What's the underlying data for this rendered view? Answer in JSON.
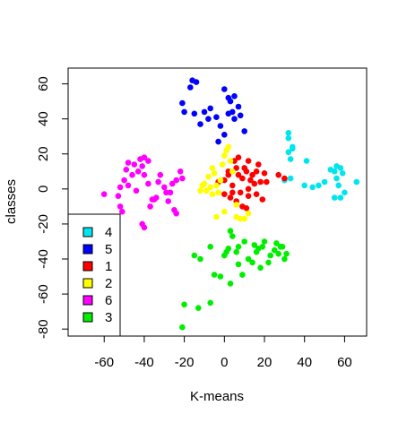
{
  "chart_data": {
    "type": "scatter",
    "title": "",
    "xlabel": "K-means",
    "ylabel": "classes",
    "xlim": [
      -78,
      71
    ],
    "ylim": [
      -84,
      69
    ],
    "xticks": [
      -60,
      -40,
      -20,
      0,
      20,
      40,
      60
    ],
    "yticks": [
      -80,
      -60,
      -40,
      -20,
      0,
      20,
      40,
      60
    ],
    "xtick_labels": [
      "-60",
      "-40",
      "-20",
      "0",
      "20",
      "40",
      "60"
    ],
    "ytick_labels": [
      "-80",
      "-60",
      "-40",
      "-20",
      "0",
      "20",
      "40",
      "60"
    ],
    "grid": false,
    "legend_position": "bottom-left",
    "series": [
      {
        "name": "4",
        "color": "#00E5EE",
        "points": [
          [
            32,
            32
          ],
          [
            32,
            29
          ],
          [
            34,
            23
          ],
          [
            32,
            21
          ],
          [
            34,
            24
          ],
          [
            41,
            16
          ],
          [
            30,
            5
          ],
          [
            33,
            6
          ],
          [
            40,
            2
          ],
          [
            44,
            1
          ],
          [
            47,
            2
          ],
          [
            50,
            4
          ],
          [
            53,
            11
          ],
          [
            55,
            10
          ],
          [
            56,
            13
          ],
          [
            58,
            12
          ],
          [
            59,
            9
          ],
          [
            56,
            6
          ],
          [
            57,
            2
          ],
          [
            55,
            -5
          ],
          [
            58,
            -5
          ],
          [
            60,
            -2
          ],
          [
            66,
            4
          ],
          [
            33,
            17
          ]
        ]
      },
      {
        "name": "5",
        "color": "#0000FF",
        "points": [
          [
            -16,
            62
          ],
          [
            -14,
            61
          ],
          [
            -17,
            58
          ],
          [
            -21,
            49
          ],
          [
            -20,
            44
          ],
          [
            -15,
            43
          ],
          [
            -12,
            37
          ],
          [
            -10,
            44
          ],
          [
            -8,
            40
          ],
          [
            -7,
            46
          ],
          [
            -2,
            36
          ],
          [
            -4,
            41
          ],
          [
            -3,
            27
          ],
          [
            0,
            31
          ],
          [
            0,
            57
          ],
          [
            2,
            52
          ],
          [
            3,
            50
          ],
          [
            5,
            53
          ],
          [
            4,
            44
          ],
          [
            2,
            43
          ],
          [
            5,
            40
          ],
          [
            7,
            47
          ],
          [
            8,
            42
          ],
          [
            10,
            33
          ]
        ]
      },
      {
        "name": "1",
        "color": "#FF0000",
        "points": [
          [
            -3,
            4
          ],
          [
            0,
            5
          ],
          [
            2,
            10
          ],
          [
            2,
            8
          ],
          [
            4,
            2
          ],
          [
            5,
            16
          ],
          [
            6,
            12
          ],
          [
            7,
            18
          ],
          [
            7,
            8
          ],
          [
            8,
            -2
          ],
          [
            9,
            6
          ],
          [
            10,
            12
          ],
          [
            11,
            10
          ],
          [
            12,
            16
          ],
          [
            12,
            0
          ],
          [
            13,
            5
          ],
          [
            14,
            8
          ],
          [
            15,
            3
          ],
          [
            16,
            -3
          ],
          [
            16,
            10
          ],
          [
            17,
            14
          ],
          [
            18,
            4
          ],
          [
            19,
            -6
          ],
          [
            20,
            9
          ],
          [
            21,
            4
          ],
          [
            9,
            -10
          ],
          [
            11,
            -11
          ],
          [
            6,
            -7
          ],
          [
            3,
            -5
          ],
          [
            0,
            -3
          ],
          [
            27,
            8
          ],
          [
            30,
            6
          ],
          [
            12,
            -4
          ],
          [
            4,
            -2
          ]
        ]
      },
      {
        "name": "2",
        "color": "#FFFF00",
        "points": [
          [
            -12,
            -1
          ],
          [
            -10,
            3
          ],
          [
            -8,
            7
          ],
          [
            -6,
            12
          ],
          [
            -5,
            9
          ],
          [
            -4,
            2
          ],
          [
            -3,
            -2
          ],
          [
            -2,
            5
          ],
          [
            -1,
            14
          ],
          [
            0,
            19
          ],
          [
            1,
            22
          ],
          [
            2,
            24
          ],
          [
            3,
            16
          ],
          [
            4,
            10
          ],
          [
            -9,
            -1
          ],
          [
            -7,
            1
          ],
          [
            -6,
            -3
          ],
          [
            -4,
            -16
          ],
          [
            0,
            -13
          ],
          [
            6,
            -9
          ],
          [
            8,
            -17
          ],
          [
            6,
            -16
          ],
          [
            10,
            -17
          ],
          [
            12,
            -14
          ],
          [
            -11,
            2
          ]
        ]
      },
      {
        "name": "6",
        "color": "#FF00FF",
        "points": [
          [
            -60,
            -3
          ],
          [
            -53,
            -4
          ],
          [
            -52,
            -10
          ],
          [
            -52,
            1
          ],
          [
            -51,
            -13
          ],
          [
            -50,
            5
          ],
          [
            -49,
            11
          ],
          [
            -48,
            15
          ],
          [
            -48,
            2
          ],
          [
            -46,
            8
          ],
          [
            -45,
            14
          ],
          [
            -44,
            -1
          ],
          [
            -43,
            10
          ],
          [
            -42,
            17
          ],
          [
            -41,
            13
          ],
          [
            -40,
            18
          ],
          [
            -40,
            8
          ],
          [
            -38,
            16
          ],
          [
            -38,
            3
          ],
          [
            -37,
            -10
          ],
          [
            -36,
            -6
          ],
          [
            -35,
            -6
          ],
          [
            -34,
            -5
          ],
          [
            -33,
            4
          ],
          [
            -32,
            8
          ],
          [
            -29,
            -2
          ],
          [
            -28,
            -7
          ],
          [
            -27,
            -2
          ],
          [
            -26,
            3
          ],
          [
            -24,
            5
          ],
          [
            -41,
            -20
          ],
          [
            -40,
            -22
          ],
          [
            -25,
            -12
          ],
          [
            -24,
            -14
          ],
          [
            -22,
            10
          ],
          [
            -21,
            6
          ],
          [
            -30,
            1
          ]
        ]
      },
      {
        "name": "3",
        "color": "#00EE00",
        "points": [
          [
            -20,
            -66
          ],
          [
            -21,
            -79
          ],
          [
            -13,
            -68
          ],
          [
            -7,
            -65
          ],
          [
            -12,
            -40
          ],
          [
            -15,
            -38
          ],
          [
            -7,
            -33
          ],
          [
            -5,
            -49
          ],
          [
            -2,
            -50
          ],
          [
            0,
            -38
          ],
          [
            1,
            -36
          ],
          [
            2,
            -34
          ],
          [
            3,
            -24
          ],
          [
            4,
            -27
          ],
          [
            6,
            -36
          ],
          [
            7,
            -43
          ],
          [
            9,
            -49
          ],
          [
            10,
            -30
          ],
          [
            12,
            -40
          ],
          [
            14,
            -42
          ],
          [
            15,
            -32
          ],
          [
            16,
            -36
          ],
          [
            17,
            -34
          ],
          [
            18,
            -45
          ],
          [
            19,
            -33
          ],
          [
            20,
            -30
          ],
          [
            22,
            -42
          ],
          [
            25,
            -35
          ],
          [
            26,
            -31
          ],
          [
            27,
            -37
          ],
          [
            28,
            -33
          ],
          [
            29,
            -33
          ],
          [
            30,
            -40
          ],
          [
            31,
            -37
          ],
          [
            23,
            -38
          ],
          [
            7,
            -33
          ],
          [
            3,
            -54
          ]
        ]
      }
    ]
  }
}
